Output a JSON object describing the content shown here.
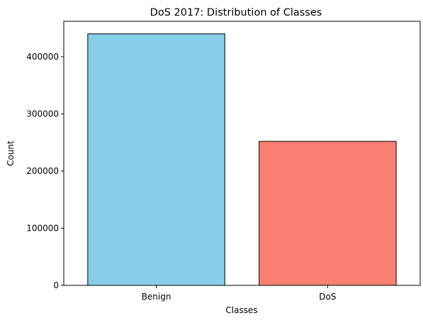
{
  "chart_data": {
    "type": "bar",
    "title": "DoS 2017: Distribution of Classes",
    "xlabel": "Classes",
    "ylabel": "Count",
    "categories": [
      "Benign",
      "DoS"
    ],
    "values": [
      440000,
      252000
    ],
    "colors": [
      "#87ceeb",
      "#fa8072"
    ],
    "edge_color": "#000000",
    "ylim": [
      0,
      462000
    ],
    "yticks": [
      0,
      100000,
      200000,
      300000,
      400000
    ],
    "ytick_labels": [
      "0",
      "100000",
      "200000",
      "300000",
      "400000"
    ],
    "grid": false,
    "legend": "none"
  }
}
